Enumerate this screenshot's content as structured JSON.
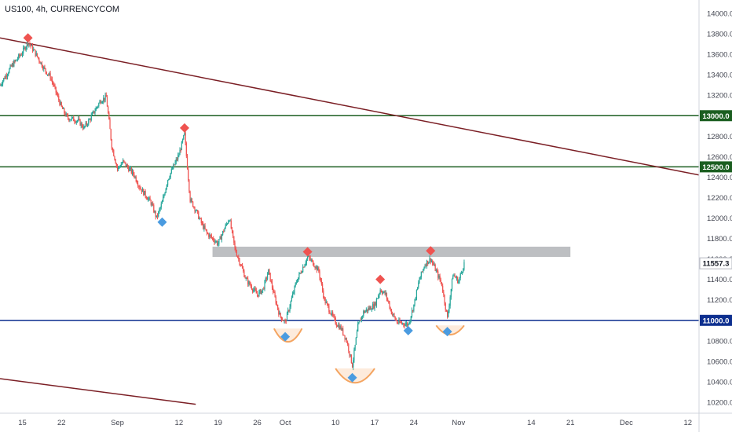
{
  "header": {
    "symbol_title": "US100, 4h, CURRENCYCOM"
  },
  "colors": {
    "up": "#26a69a",
    "down": "#ef5350",
    "trendline": "#7b1f25",
    "level_green": "#1b5e20",
    "level_blue": "#0d2f8f",
    "zone": "#a7a9ae",
    "peak_marker": "#ef5350",
    "trough_marker": "#4a9be0",
    "cup": "#f4a460"
  },
  "chart_data": {
    "type": "candlestick",
    "title": "US100, 4h, CURRENCYCOM",
    "x_axis": {
      "domain": [
        "2022-08-11",
        "2022-12-14"
      ],
      "ticks": [
        {
          "date": "2022-08-15",
          "label": "15"
        },
        {
          "date": "2022-08-22",
          "label": "22"
        },
        {
          "date": "2022-09-01",
          "label": "Sep"
        },
        {
          "date": "2022-09-12",
          "label": "12"
        },
        {
          "date": "2022-09-19",
          "label": "19"
        },
        {
          "date": "2022-09-26",
          "label": "26"
        },
        {
          "date": "2022-10-01",
          "label": "Oct"
        },
        {
          "date": "2022-10-10",
          "label": "10"
        },
        {
          "date": "2022-10-17",
          "label": "17"
        },
        {
          "date": "2022-10-24",
          "label": "24"
        },
        {
          "date": "2022-11-01",
          "label": "Nov"
        },
        {
          "date": "2022-11-14",
          "label": "14"
        },
        {
          "date": "2022-11-21",
          "label": "21"
        },
        {
          "date": "2022-12-01",
          "label": "Dec"
        },
        {
          "date": "2022-12-12",
          "label": "12"
        }
      ]
    },
    "y_axis": {
      "range": [
        10150,
        14150
      ],
      "ticks": [
        "14000.0",
        "13800.0",
        "13600.0",
        "13400.0",
        "13200.0",
        "13000.0",
        "12800.0",
        "12600.0",
        "12400.0",
        "12200.0",
        "12000.0",
        "11800.0",
        "11600.0",
        "11400.0",
        "11200.0",
        "11000.0",
        "10800.0",
        "10600.0",
        "10400.0",
        "10200.0"
      ],
      "last_price": {
        "value": 11557.3,
        "label": "11557.3"
      }
    },
    "grid": false,
    "price_path": [
      [
        "2022-08-11",
        13300
      ],
      [
        "2022-08-13",
        13480
      ],
      [
        "2022-08-15",
        13620
      ],
      [
        "2022-08-16",
        13720
      ],
      [
        "2022-08-17",
        13640
      ],
      [
        "2022-08-19",
        13450
      ],
      [
        "2022-08-20",
        13380
      ],
      [
        "2022-08-22",
        13080
      ],
      [
        "2022-08-23",
        12980
      ],
      [
        "2022-08-25",
        12950
      ],
      [
        "2022-08-26",
        12880
      ],
      [
        "2022-08-27",
        12960
      ],
      [
        "2022-08-29",
        13150
      ],
      [
        "2022-08-30",
        13180
      ],
      [
        "2022-08-31",
        12700
      ],
      [
        "2022-09-01",
        12480
      ],
      [
        "2022-09-02",
        12550
      ],
      [
        "2022-09-04",
        12420
      ],
      [
        "2022-09-05",
        12300
      ],
      [
        "2022-09-07",
        12150
      ],
      [
        "2022-09-08",
        12000
      ],
      [
        "2022-09-09",
        12150
      ],
      [
        "2022-09-10",
        12380
      ],
      [
        "2022-09-12",
        12620
      ],
      [
        "2022-09-13",
        12820
      ],
      [
        "2022-09-14",
        12180
      ],
      [
        "2022-09-15",
        12080
      ],
      [
        "2022-09-16",
        11950
      ],
      [
        "2022-09-17",
        11850
      ],
      [
        "2022-09-19",
        11750
      ],
      [
        "2022-09-20",
        11880
      ],
      [
        "2022-09-21",
        12000
      ],
      [
        "2022-09-22",
        11700
      ],
      [
        "2022-09-24",
        11400
      ],
      [
        "2022-09-26",
        11250
      ],
      [
        "2022-09-27",
        11300
      ],
      [
        "2022-09-28",
        11480
      ],
      [
        "2022-09-29",
        11250
      ],
      [
        "2022-09-30",
        11050
      ],
      [
        "2022-10-01",
        10980
      ],
      [
        "2022-10-03",
        11380
      ],
      [
        "2022-10-05",
        11620
      ],
      [
        "2022-10-06",
        11560
      ],
      [
        "2022-10-07",
        11480
      ],
      [
        "2022-10-08",
        11200
      ],
      [
        "2022-10-10",
        10980
      ],
      [
        "2022-10-11",
        10920
      ],
      [
        "2022-10-12",
        10800
      ],
      [
        "2022-10-13",
        10560
      ],
      [
        "2022-10-14",
        10940
      ],
      [
        "2022-10-15",
        11080
      ],
      [
        "2022-10-17",
        11150
      ],
      [
        "2022-10-18",
        11300
      ],
      [
        "2022-10-19",
        11250
      ],
      [
        "2022-10-20",
        11080
      ],
      [
        "2022-10-21",
        10980
      ],
      [
        "2022-10-23",
        10960
      ],
      [
        "2022-10-24",
        11150
      ],
      [
        "2022-10-25",
        11400
      ],
      [
        "2022-10-26",
        11550
      ],
      [
        "2022-10-27",
        11600
      ],
      [
        "2022-10-28",
        11480
      ],
      [
        "2022-10-29",
        11350
      ],
      [
        "2022-10-30",
        11020
      ],
      [
        "2022-10-31",
        11450
      ],
      [
        "2022-11-01",
        11380
      ],
      [
        "2022-11-02",
        11557
      ]
    ],
    "overlays": {
      "resistance_zone": {
        "start": "2022-09-18",
        "end": "2022-11-21",
        "low": 11620,
        "high": 11720
      },
      "horizontal_levels": [
        {
          "value": 13000,
          "label": "13000.0",
          "color": "level_green"
        },
        {
          "value": 12500,
          "label": "12500.0",
          "color": "level_green"
        },
        {
          "value": 11000,
          "label": "11000.0",
          "color": "level_blue"
        }
      ],
      "trendlines": [
        {
          "from": [
            "2022-08-11",
            13760
          ],
          "to": [
            "2022-12-14",
            12420
          ]
        },
        {
          "from": [
            "2022-08-11",
            10430
          ],
          "to": [
            "2022-09-15",
            10180
          ]
        }
      ],
      "peak_markers": [
        [
          "2022-08-16",
          13760
        ],
        [
          "2022-09-13",
          12880
        ],
        [
          "2022-10-05",
          11670
        ],
        [
          "2022-10-18",
          11400
        ],
        [
          "2022-10-27",
          11680
        ]
      ],
      "trough_markers": [
        [
          "2022-09-09",
          11960
        ],
        [
          "2022-10-01",
          10840
        ],
        [
          "2022-10-13",
          10440
        ],
        [
          "2022-10-23",
          10900
        ],
        [
          "2022-10-30",
          10890
        ]
      ],
      "cups": [
        {
          "from": "2022-09-29",
          "to": "2022-10-04",
          "top": 10920,
          "bottom": 10790
        },
        {
          "from": "2022-10-10",
          "to": "2022-10-17",
          "top": 10530,
          "bottom": 10390
        },
        {
          "from": "2022-10-28",
          "to": "2022-11-02",
          "top": 10950,
          "bottom": 10860
        }
      ]
    }
  }
}
